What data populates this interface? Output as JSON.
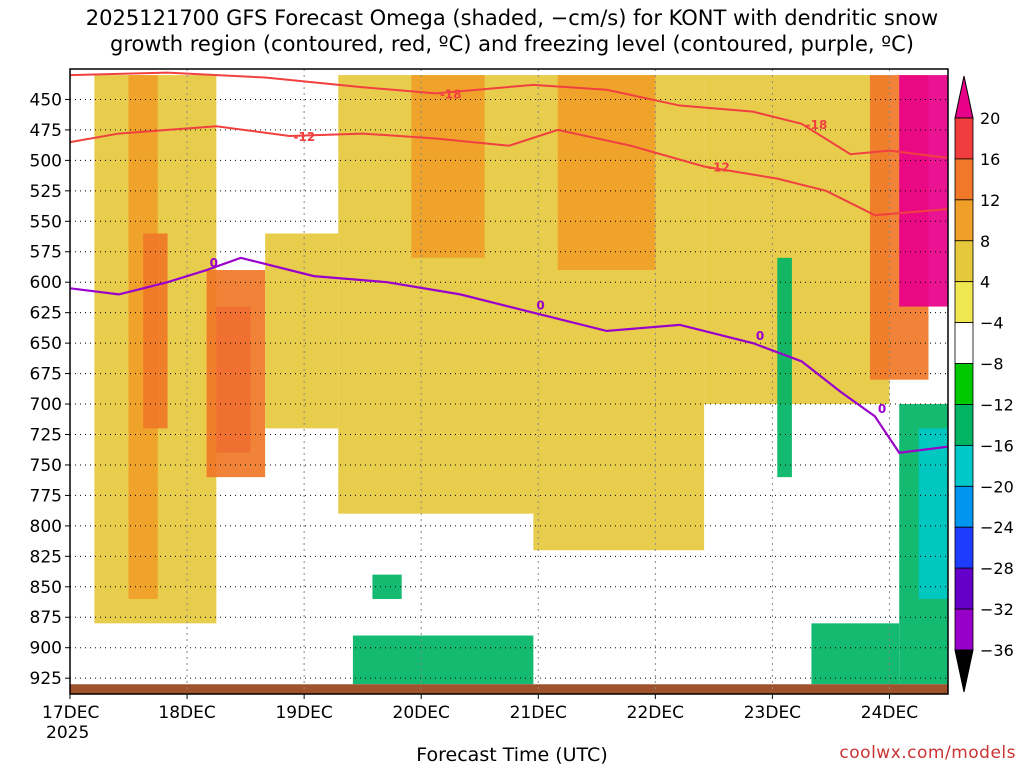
{
  "chart_data": {
    "type": "heatmap",
    "title_line1": "2025121700 GFS Forecast Omega (shaded, −cm/s) for KONT with dendritic snow",
    "title_line2": "growth region (contoured, red, ºC) and freezing level (contoured, purple, ºC)",
    "xlabel": "Forecast Time (UTC)",
    "ylabel": "",
    "source": "coolwx.com/models",
    "x_ticks": [
      "17DEC",
      "18DEC",
      "19DEC",
      "20DEC",
      "21DEC",
      "22DEC",
      "23DEC",
      "24DEC"
    ],
    "x_year": "2025",
    "x_range_hours": [
      0,
      180
    ],
    "y_ticks": [
      450,
      475,
      500,
      525,
      550,
      575,
      600,
      625,
      650,
      675,
      700,
      725,
      750,
      775,
      800,
      825,
      850,
      875,
      900,
      925
    ],
    "y_range_hpa": [
      425,
      938
    ],
    "colorbar": {
      "levels": [
        20,
        16,
        12,
        8,
        4,
        -4,
        -8,
        -12,
        -16,
        -20,
        -24,
        -28,
        -32,
        -36
      ],
      "colors": [
        "#e8008a",
        "#f03c3c",
        "#f07828",
        "#f0a028",
        "#e6c83c",
        "#f0e650",
        "#ffffff",
        "#00c800",
        "#00b464",
        "#00c8c8",
        "#0096f0",
        "#1e3cff",
        "#6400c8",
        "#9600c8",
        "#a0a0a0",
        "#000000"
      ]
    },
    "omega_regions": [
      {
        "value": 6,
        "t": [
          5,
          30
        ],
        "p": [
          430,
          880
        ]
      },
      {
        "value": 10,
        "t": [
          12,
          18
        ],
        "p": [
          430,
          860
        ]
      },
      {
        "value": 14,
        "t": [
          15,
          20
        ],
        "p": [
          560,
          720
        ]
      },
      {
        "value": 20,
        "t": [
          30,
          37
        ],
        "p": [
          620,
          740
        ]
      },
      {
        "value": 14,
        "t": [
          28,
          40
        ],
        "p": [
          590,
          760
        ]
      },
      {
        "value": 6,
        "t": [
          40,
          55
        ],
        "p": [
          560,
          720
        ]
      },
      {
        "value": 6,
        "t": [
          55,
          95
        ],
        "p": [
          430,
          790
        ]
      },
      {
        "value": 10,
        "t": [
          70,
          85
        ],
        "p": [
          430,
          580
        ]
      },
      {
        "value": 6,
        "t": [
          95,
          130
        ],
        "p": [
          430,
          820
        ]
      },
      {
        "value": 10,
        "t": [
          100,
          120
        ],
        "p": [
          430,
          590
        ]
      },
      {
        "value": 6,
        "t": [
          130,
          168
        ],
        "p": [
          430,
          700
        ]
      },
      {
        "value": 14,
        "t": [
          164,
          176
        ],
        "p": [
          430,
          680
        ]
      },
      {
        "value": 20,
        "t": [
          170,
          180
        ],
        "p": [
          430,
          620
        ]
      },
      {
        "value": -8,
        "t": [
          145,
          148
        ],
        "p": [
          580,
          760
        ]
      },
      {
        "value": -8,
        "t": [
          170,
          180
        ],
        "p": [
          700,
          930
        ]
      },
      {
        "value": -12,
        "t": [
          174,
          180
        ],
        "p": [
          720,
          860
        ]
      },
      {
        "value": -8,
        "t": [
          62,
          68
        ],
        "p": [
          840,
          860
        ]
      },
      {
        "value": -8,
        "t": [
          58,
          95
        ],
        "p": [
          890,
          930
        ]
      },
      {
        "value": -8,
        "t": [
          152,
          170
        ],
        "p": [
          880,
          930
        ]
      }
    ],
    "dgz_contours": [
      {
        "label": "-18",
        "t": [
          0,
          20,
          40,
          60,
          75,
          95,
          110,
          125,
          140,
          150,
          160,
          168,
          180
        ],
        "p": [
          430,
          428,
          432,
          440,
          445,
          438,
          442,
          455,
          460,
          470,
          495,
          492,
          498
        ]
      },
      {
        "label": "-12",
        "t": [
          0,
          10,
          20,
          30,
          45,
          60,
          75,
          90,
          100,
          115,
          130,
          145,
          155,
          165,
          180
        ],
        "p": [
          485,
          478,
          475,
          472,
          480,
          478,
          482,
          488,
          475,
          488,
          505,
          515,
          525,
          545,
          540
        ]
      }
    ],
    "freezing_level": {
      "label": "0",
      "t": [
        0,
        10,
        20,
        28,
        35,
        50,
        65,
        80,
        95,
        110,
        125,
        140,
        150,
        158,
        165,
        170,
        180
      ],
      "p": [
        605,
        610,
        600,
        590,
        580,
        595,
        600,
        610,
        625,
        640,
        635,
        650,
        665,
        690,
        710,
        740,
        735
      ]
    }
  }
}
